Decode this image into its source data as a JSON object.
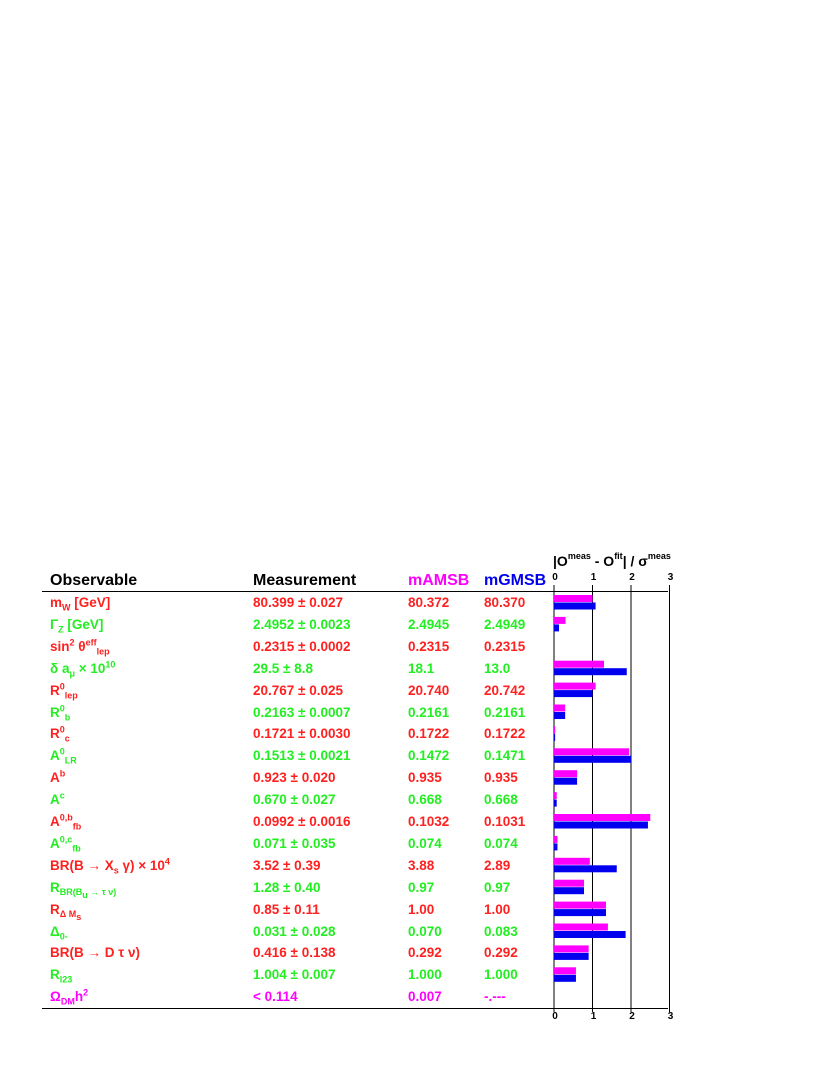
{
  "headers": {
    "observable": "Observable",
    "measurement": "Measurement",
    "model_a": "mAMSB",
    "model_b": "mGMSB"
  },
  "colors": {
    "red": "#ff2020",
    "green": "#22ee22",
    "magenta": "#ff00ff",
    "blue": "#0000ee",
    "black": "#000000"
  },
  "axis_title": {
    "o": "|O",
    "meas_sup": "meas",
    "minus": " - O",
    "fit_sup": "fit",
    "bar": "| / ",
    "sigma": "σ",
    "sigma_sup": "meas"
  },
  "rows": [
    {
      "obs": "m<sub>W</sub> [GeV]",
      "meas": "80.399 ± 0.027",
      "a": "80.372",
      "b": "80.370",
      "color": "red"
    },
    {
      "obs": "Γ<sub>Z</sub> [GeV]",
      "meas": "2.4952 ± 0.0023",
      "a": "2.4945",
      "b": "2.4949",
      "color": "green"
    },
    {
      "obs": "sin<sup>2</sup> θ<sup>eff</sup><sub>lep</sub>",
      "meas": "0.2315 ± 0.0002",
      "a": "0.2315",
      "b": "0.2315",
      "color": "red"
    },
    {
      "obs": "δ a<sub>μ</sub> × 10<sup>10</sup>",
      "meas": "29.5 ± 8.8",
      "a": "18.1",
      "b": "13.0",
      "color": "green"
    },
    {
      "obs": "R<sup>0</sup><sub>lep</sub>",
      "meas": "20.767 ± 0.025",
      "a": "20.740",
      "b": "20.742",
      "color": "red"
    },
    {
      "obs": "R<sup>0</sup><sub>b</sub>",
      "meas": "0.2163 ± 0.0007",
      "a": "0.2161",
      "b": "0.2161",
      "color": "green"
    },
    {
      "obs": "R<sup>0</sup><sub>c</sub>",
      "meas": "0.1721 ± 0.0030",
      "a": "0.1722",
      "b": "0.1722",
      "color": "red"
    },
    {
      "obs": "A<sup>0</sup><sub>LR</sub>",
      "meas": "0.1513 ± 0.0021",
      "a": "0.1472",
      "b": "0.1471",
      "color": "green"
    },
    {
      "obs": "A<sup>b</sup>",
      "meas": "0.923 ± 0.020",
      "a": "0.935",
      "b": "0.935",
      "color": "red"
    },
    {
      "obs": "A<sup>c</sup>",
      "meas": "0.670 ± 0.027",
      "a": "0.668",
      "b": "0.668",
      "color": "green"
    },
    {
      "obs": "A<sup>0,b</sup><sub>fb</sub>",
      "meas": "0.0992 ± 0.0016",
      "a": "0.1032",
      "b": "0.1031",
      "color": "red"
    },
    {
      "obs": "A<sup>0,c</sup><sub>fb</sub>",
      "meas": "0.071 ± 0.035",
      "a": "0.074",
      "b": "0.074",
      "color": "green"
    },
    {
      "obs": "BR(B → X<sub>s</sub> γ) × 10<sup>4</sup>",
      "meas": "3.52 ± 0.39",
      "a": "3.88",
      "b": "2.89",
      "color": "red"
    },
    {
      "obs": "R<sub>BR(B<sub>u</sub> → τ ν)</sub>",
      "meas": "1.28 ± 0.40",
      "a": "0.97",
      "b": "0.97",
      "color": "green"
    },
    {
      "obs": "R<sub>Δ M<sub>s</sub></sub>",
      "meas": "0.85 ± 0.11",
      "a": "1.00",
      "b": "1.00",
      "color": "red"
    },
    {
      "obs": "Δ<sub>0-</sub>",
      "meas": "0.031 ± 0.028",
      "a": "0.070",
      "b": "0.083",
      "color": "green"
    },
    {
      "obs": "BR(B → D τ ν)",
      "meas": "0.416 ± 0.138",
      "a": "0.292",
      "b": "0.292",
      "color": "red"
    },
    {
      "obs": "R<sub>l23</sub>",
      "meas": "1.004 ± 0.007",
      "a": "1.000",
      "b": "1.000",
      "color": "green"
    },
    {
      "obs": "Ω<sub>DM</sub>h<sup>2</sup>",
      "meas": "< 0.114",
      "a": "0.007",
      "b": "-.---",
      "color": "magenta"
    }
  ],
  "chart_data": {
    "type": "bar",
    "orientation": "horizontal",
    "xlim": [
      0,
      3
    ],
    "xticks": [
      "0",
      "1",
      "2",
      "3"
    ],
    "categories": [
      "m_W",
      "Gamma_Z",
      "sin2theta_eff_lep",
      "delta_a_mu",
      "R0_lep",
      "R0_b",
      "R0_c",
      "A0_LR",
      "A_b",
      "A_c",
      "A0b_fb",
      "A0c_fb",
      "BR(B->Xs gamma)",
      "R_BR(Bu->tau nu)",
      "R_DeltaMs",
      "Delta_0-",
      "BR(B->D tau nu)",
      "R_l23",
      "Omega_DM h2"
    ],
    "series": [
      {
        "name": "mAMSB",
        "color": "#ff00ff",
        "values": [
          1.0,
          0.3,
          0.0,
          1.3,
          1.08,
          0.29,
          0.03,
          1.95,
          0.6,
          0.07,
          2.5,
          0.09,
          0.93,
          0.78,
          1.35,
          1.4,
          0.9,
          0.57,
          0.0
        ]
      },
      {
        "name": "mGMSB",
        "color": "#0000ee",
        "values": [
          1.08,
          0.13,
          0.0,
          1.89,
          1.0,
          0.29,
          0.03,
          2.0,
          0.6,
          0.07,
          2.44,
          0.09,
          1.63,
          0.78,
          1.35,
          1.86,
          0.9,
          0.57,
          0.0
        ]
      }
    ]
  }
}
